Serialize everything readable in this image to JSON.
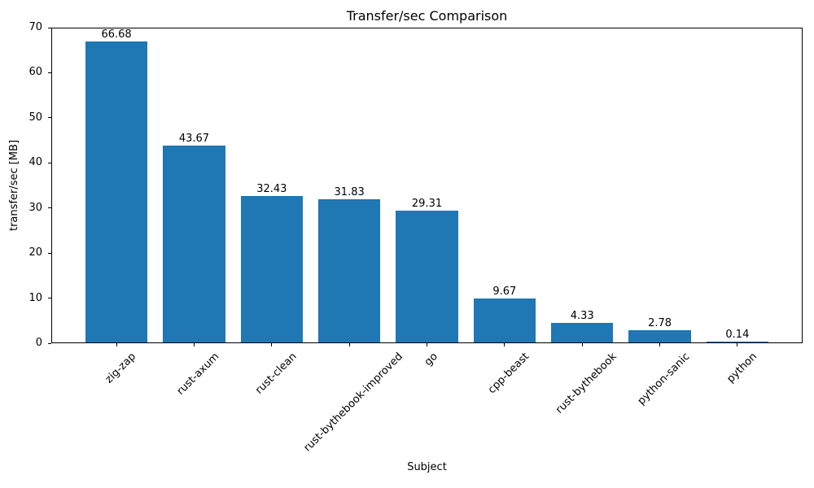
{
  "chart_data": {
    "type": "bar",
    "title": "Transfer/sec Comparison",
    "xlabel": "Subject",
    "ylabel": "transfer/sec [MB]",
    "categories": [
      "zig-zap",
      "rust-axum",
      "rust-clean",
      "rust-bythebook-improved",
      "go",
      "cpp-beast",
      "rust-bythebook",
      "python-sanic",
      "python"
    ],
    "values": [
      66.68,
      43.67,
      32.43,
      31.83,
      29.31,
      9.67,
      4.33,
      2.78,
      0.14
    ],
    "value_labels": [
      "66.68",
      "43.67",
      "32.43",
      "31.83",
      "29.31",
      "9.67",
      "4.33",
      "2.78",
      "0.14"
    ],
    "ylim": [
      0,
      70
    ],
    "yticks": [
      0,
      10,
      20,
      30,
      40,
      50,
      60,
      70
    ],
    "bar_color": "#1f77b4",
    "axis_color": "#000000",
    "text_color": "#000000",
    "background_color": "#ffffff",
    "grid": false,
    "legend_position": "none",
    "x_tick_rotation_deg": 45,
    "bar_relative_width": 0.8
  }
}
